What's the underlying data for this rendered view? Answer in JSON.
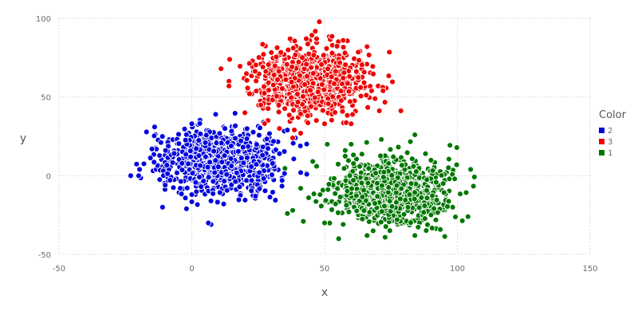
{
  "chart_data": {
    "type": "scatter",
    "xlabel": "x",
    "ylabel": "y",
    "xlim": [
      -50,
      150
    ],
    "ylim": [
      -50,
      100
    ],
    "x_ticks": [
      -50,
      0,
      50,
      100,
      150
    ],
    "y_ticks": [
      -50,
      0,
      50,
      100
    ],
    "grid": true,
    "legend": {
      "title": "Color",
      "placement": "right"
    },
    "series": [
      {
        "name": "2",
        "color": "#0000dd",
        "count": 1000,
        "center": [
          10,
          10
        ],
        "spread": [
          10,
          10
        ],
        "points": [
          [
            -23,
            0
          ],
          [
            -20,
            0
          ],
          [
            -14,
            31
          ],
          [
            -11,
            -20
          ],
          [
            -2,
            -21
          ],
          [
            -15,
            17
          ],
          [
            0,
            33
          ],
          [
            9,
            39
          ],
          [
            27,
            34
          ],
          [
            36,
            29
          ],
          [
            39,
            24
          ],
          [
            33,
            14
          ],
          [
            41,
            2
          ],
          [
            34,
            -3
          ],
          [
            24,
            -13
          ],
          [
            12,
            -18
          ],
          [
            0,
            -12
          ],
          [
            -10,
            -6
          ]
        ]
      },
      {
        "name": "3",
        "color": "#ee0000",
        "count": 1000,
        "center": [
          45,
          60
        ],
        "spread": [
          10,
          10
        ],
        "points": [
          [
            11,
            68
          ],
          [
            20,
            40
          ],
          [
            33,
            30
          ],
          [
            37,
            87
          ],
          [
            47,
            87
          ],
          [
            57,
            86
          ],
          [
            66,
            82
          ],
          [
            72,
            54
          ],
          [
            69,
            49
          ],
          [
            60,
            33
          ],
          [
            50,
            33
          ],
          [
            41,
            27
          ],
          [
            38,
            24
          ],
          [
            26,
            45
          ],
          [
            14,
            60
          ],
          [
            14,
            57
          ]
        ]
      },
      {
        "name": "1",
        "color": "#007700",
        "count": 1000,
        "center": [
          75,
          -10
        ],
        "spread": [
          10,
          10
        ],
        "points": [
          [
            36,
            -24
          ],
          [
            38,
            -22
          ],
          [
            42,
            -29
          ],
          [
            47,
            6
          ],
          [
            51,
            20
          ],
          [
            60,
            20
          ],
          [
            84,
            26
          ],
          [
            88,
            14
          ],
          [
            97,
            -2
          ],
          [
            99,
            -2
          ],
          [
            105,
            4
          ],
          [
            104,
            -26
          ],
          [
            84,
            -38
          ],
          [
            66,
            -38
          ],
          [
            50,
            -30
          ],
          [
            44,
            -14
          ],
          [
            41,
            -8
          ]
        ]
      }
    ]
  }
}
